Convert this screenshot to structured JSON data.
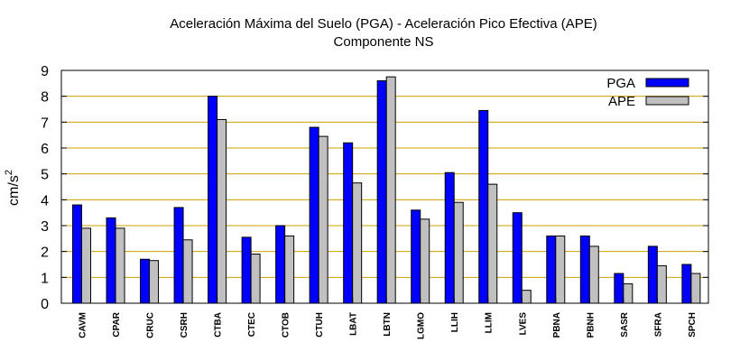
{
  "chart_data": {
    "type": "bar",
    "title_line1": "Aceleración Máxima del Suelo (PGA) -  Aceleración Pico Efectiva (APE)",
    "title_line2": "Componente NS",
    "ylabel": "cm/s",
    "ylabel_sup": "2",
    "xlabel": "",
    "ylim": [
      0,
      9
    ],
    "yticks": [
      0,
      1,
      2,
      3,
      4,
      5,
      6,
      7,
      8,
      9
    ],
    "grid": true,
    "legend_position": "top-right",
    "categories": [
      "CAVM",
      "CPAR",
      "CRUC",
      "CSRH",
      "CTBA",
      "CTEC",
      "CTOB",
      "CTUH",
      "LBAT",
      "LBTN",
      "LGMO",
      "LLIH",
      "LLIM",
      "LVES",
      "PBNA",
      "PBNH",
      "SASR",
      "SFRA",
      "SPCH"
    ],
    "series": [
      {
        "name": "PGA",
        "color": "#0000ff",
        "values": [
          3.8,
          3.3,
          1.7,
          3.7,
          8.0,
          2.55,
          3.0,
          6.8,
          6.2,
          8.6,
          3.6,
          5.05,
          7.45,
          3.5,
          2.6,
          2.6,
          1.15,
          2.2,
          1.5
        ]
      },
      {
        "name": "APE",
        "color": "#c0c0c0",
        "values": [
          2.9,
          2.9,
          1.65,
          2.45,
          7.1,
          1.9,
          2.6,
          6.45,
          4.65,
          8.75,
          3.25,
          3.9,
          4.6,
          0.5,
          2.6,
          2.2,
          0.75,
          1.45,
          1.15
        ]
      }
    ],
    "gridline_color": "#c8a000"
  }
}
